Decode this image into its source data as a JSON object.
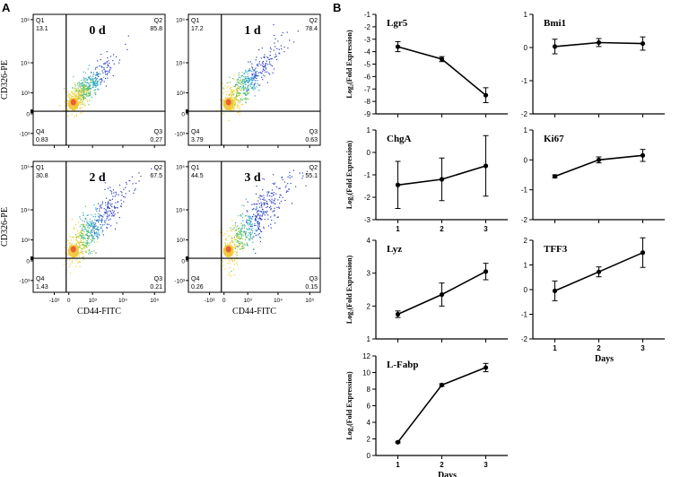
{
  "panel_a": {
    "label": "A",
    "x_axis_label": "CD44-FITC",
    "y_axis_label": "CD326-PE",
    "tick_labels": {
      "x": [
        "-10³",
        "0",
        "10³",
        "10⁴",
        "10⁵"
      ],
      "y": [
        "10⁵",
        "10⁴",
        "10³",
        "0",
        "-10³"
      ]
    },
    "plots": [
      {
        "day_label": "0 d",
        "Q1": {
          "name": "Q1",
          "value": "13.1"
        },
        "Q2": {
          "name": "Q2",
          "value": "85.8"
        },
        "Q3": {
          "name": "Q3",
          "value": "0.27"
        },
        "Q4": {
          "name": "Q4",
          "value": "0.83"
        }
      },
      {
        "day_label": "1 d",
        "Q1": {
          "name": "Q1",
          "value": "17.2"
        },
        "Q2": {
          "name": "Q2",
          "value": "78.4"
        },
        "Q3": {
          "name": "Q3",
          "value": "0.63"
        },
        "Q4": {
          "name": "Q4",
          "value": "3.79"
        }
      },
      {
        "day_label": "2 d",
        "Q1": {
          "name": "Q1",
          "value": "30.8"
        },
        "Q2": {
          "name": "Q2",
          "value": "67.5"
        },
        "Q3": {
          "name": "Q3",
          "value": "0.21"
        },
        "Q4": {
          "name": "Q4",
          "value": "1.43"
        }
      },
      {
        "day_label": "3 d",
        "Q1": {
          "name": "Q1",
          "value": "44.5"
        },
        "Q2": {
          "name": "Q2",
          "value": "55.1"
        },
        "Q3": {
          "name": "Q3",
          "value": "0.15"
        },
        "Q4": {
          "name": "Q4",
          "value": "0.26"
        }
      }
    ]
  },
  "panel_b": {
    "label": "B",
    "x_axis_title": "Days",
    "y_axis_label": "Log₂(Fold Expression)"
  },
  "chart_data": [
    {
      "type": "line",
      "title": "Lgr5",
      "x": [
        1,
        2,
        3
      ],
      "y": [
        -3.6,
        -4.6,
        -7.5
      ],
      "err": [
        0.4,
        0.2,
        0.6
      ],
      "ylim": [
        -9,
        -1
      ],
      "yticks": [
        -9,
        -8,
        -7,
        -6,
        -5,
        -4,
        -3,
        -2,
        -1
      ],
      "xticks": [
        1,
        2,
        3
      ],
      "show_xtick_labels": false,
      "xlabel": "",
      "ylabel": "Log₂(Fold Expression)"
    },
    {
      "type": "line",
      "title": "Bmi1",
      "x": [
        1,
        2,
        3
      ],
      "y": [
        0.03,
        0.15,
        0.12
      ],
      "err": [
        0.22,
        0.12,
        0.2
      ],
      "ylim": [
        -2,
        1
      ],
      "yticks": [
        -2,
        -1,
        0,
        1
      ],
      "xticks": [
        1,
        2,
        3
      ],
      "show_xtick_labels": false,
      "xlabel": "",
      "ylabel": ""
    },
    {
      "type": "line",
      "title": "ChgA",
      "x": [
        1,
        2,
        3
      ],
      "y": [
        -1.45,
        -1.2,
        -0.6
      ],
      "err": [
        1.05,
        0.95,
        1.35
      ],
      "ylim": [
        -3,
        1
      ],
      "yticks": [
        -3,
        -2,
        -1,
        0,
        1
      ],
      "xticks": [
        1,
        2,
        3
      ],
      "show_xtick_labels": true,
      "xlabel": "",
      "ylabel": "Log₂(Fold Expression)"
    },
    {
      "type": "line",
      "title": "Ki67",
      "x": [
        1,
        2,
        3
      ],
      "y": [
        -0.55,
        0.0,
        0.15
      ],
      "err": [
        0.05,
        0.1,
        0.2
      ],
      "ylim": [
        -2,
        1
      ],
      "yticks": [
        -2,
        -1,
        0,
        1
      ],
      "xticks": [
        1,
        2,
        3
      ],
      "show_xtick_labels": false,
      "xlabel": "",
      "ylabel": ""
    },
    {
      "type": "line",
      "title": "Lyz",
      "x": [
        1,
        2,
        3
      ],
      "y": [
        1.75,
        2.35,
        3.05
      ],
      "err": [
        0.1,
        0.35,
        0.25
      ],
      "ylim": [
        1,
        4
      ],
      "yticks": [
        1,
        2,
        3,
        4
      ],
      "xticks": [
        1,
        2,
        3
      ],
      "show_xtick_labels": false,
      "xlabel": "",
      "ylabel": "Log₂(Fold Expression)"
    },
    {
      "type": "line",
      "title": "TFF3",
      "x": [
        1,
        2,
        3
      ],
      "y": [
        -0.05,
        0.72,
        1.5
      ],
      "err": [
        0.4,
        0.2,
        0.6
      ],
      "ylim": [
        -2,
        2
      ],
      "yticks": [
        -2,
        -1,
        0,
        1,
        2
      ],
      "xticks": [
        1,
        2,
        3
      ],
      "show_xtick_labels": true,
      "xlabel": "Days",
      "ylabel": ""
    },
    {
      "type": "line",
      "title": "L-Fabp",
      "x": [
        1,
        2,
        3
      ],
      "y": [
        1.6,
        8.5,
        10.6
      ],
      "err": [
        0.1,
        0.15,
        0.5
      ],
      "ylim": [
        0,
        12
      ],
      "yticks": [
        0,
        2,
        4,
        6,
        8,
        10,
        12
      ],
      "xticks": [
        1,
        2,
        3
      ],
      "show_xtick_labels": true,
      "xlabel": "Days",
      "ylabel": "Log₂(Fold Expression)"
    }
  ]
}
